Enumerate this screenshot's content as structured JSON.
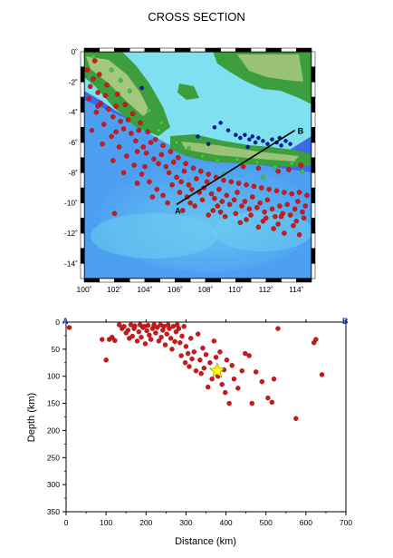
{
  "title": "CROSS SECTION",
  "colors": {
    "event": "#d01818",
    "event_edge": "#7a0000",
    "mainshock": "#ffff00",
    "deep_event": "#0a1aa8",
    "shallow_event": "#3cc83c",
    "profile_line": "#000000",
    "endpoint_label": "#1a2cc8",
    "ocean_deep": "#3d6be8",
    "ocean_mid": "#4fb2f2",
    "ocean_shelf": "#7fe0f0",
    "land_low": "#3d9e3d",
    "land_high": "#e8e2a8"
  },
  "chart_data": [
    {
      "type": "map",
      "name": "epicenter map",
      "xlim": [
        100,
        115
      ],
      "ylim": [
        -15,
        0
      ],
      "x_ticks": [
        100,
        102,
        104,
        106,
        108,
        110,
        112,
        114
      ],
      "x_tick_labels": [
        "100˚",
        "102˚",
        "104˚",
        "106˚",
        "108˚",
        "110˚",
        "112˚",
        "114˚"
      ],
      "y_ticks": [
        0,
        -2,
        -4,
        -6,
        -8,
        -10,
        -12,
        -14
      ],
      "y_tick_labels": [
        "0˚",
        "-2˚",
        "-4˚",
        "-6˚",
        "-8˚",
        "-10˚",
        "-12˚",
        "-14˚"
      ],
      "profile": {
        "start": {
          "label": "A",
          "lon": 106.1,
          "lat": -10.1
        },
        "end": {
          "label": "B",
          "lon": 113.9,
          "lat": -5.2
        }
      },
      "deep_events": [
        [
          103.8,
          -2.4
        ],
        [
          108.6,
          -5.0
        ],
        [
          109.0,
          -4.7
        ],
        [
          109.5,
          -5.2
        ],
        [
          110.0,
          -5.5
        ],
        [
          110.3,
          -5.7
        ],
        [
          110.6,
          -5.5
        ],
        [
          110.9,
          -5.8
        ],
        [
          111.1,
          -5.6
        ],
        [
          111.3,
          -6.0
        ],
        [
          111.5,
          -5.7
        ],
        [
          111.8,
          -5.9
        ],
        [
          112.1,
          -6.1
        ],
        [
          112.4,
          -5.8
        ],
        [
          112.7,
          -6.0
        ],
        [
          113.0,
          -6.2
        ],
        [
          113.3,
          -5.9
        ],
        [
          113.6,
          -6.1
        ],
        [
          107.5,
          -5.6
        ],
        [
          108.2,
          -6.1
        ],
        [
          110.8,
          -6.3
        ],
        [
          112.9,
          -5.7
        ]
      ],
      "shallow_events": [
        [
          100.6,
          -0.3
        ],
        [
          101.8,
          -1.2
        ],
        [
          103.0,
          -2.6
        ],
        [
          104.3,
          -3.9
        ],
        [
          105.1,
          -4.7
        ],
        [
          106.1,
          -6.0
        ],
        [
          106.9,
          -6.4
        ],
        [
          107.8,
          -6.9
        ],
        [
          108.8,
          -7.2
        ],
        [
          110.1,
          -7.1
        ],
        [
          111.4,
          -7.3
        ],
        [
          112.6,
          -7.6
        ],
        [
          113.7,
          -7.4
        ],
        [
          114.4,
          -7.9
        ],
        [
          109.2,
          -8.1
        ],
        [
          111.8,
          -8.3
        ],
        [
          104.9,
          -5.2
        ],
        [
          102.4,
          -1.9
        ]
      ],
      "events": [
        [
          100.2,
          -1.2
        ],
        [
          100.4,
          -2.3
        ],
        [
          100.6,
          -1.8
        ],
        [
          100.9,
          -2.7
        ],
        [
          101.1,
          -3.4
        ],
        [
          101.4,
          -2.9
        ],
        [
          101.6,
          -3.8
        ],
        [
          101.9,
          -4.3
        ],
        [
          102.1,
          -3.6
        ],
        [
          102.4,
          -4.6
        ],
        [
          102.6,
          -5.1
        ],
        [
          102.9,
          -4.5
        ],
        [
          103.1,
          -5.4
        ],
        [
          103.4,
          -5.9
        ],
        [
          103.6,
          -5.2
        ],
        [
          103.9,
          -6.3
        ],
        [
          104.1,
          -6.7
        ],
        [
          104.4,
          -6.0
        ],
        [
          104.6,
          -7.1
        ],
        [
          104.9,
          -7.4
        ],
        [
          105.1,
          -6.8
        ],
        [
          105.4,
          -7.6
        ],
        [
          105.6,
          -8.0
        ],
        [
          105.9,
          -7.3
        ],
        [
          106.1,
          -8.3
        ],
        [
          106.4,
          -8.6
        ],
        [
          106.6,
          -7.9
        ],
        [
          106.9,
          -8.8
        ],
        [
          107.1,
          -9.1
        ],
        [
          107.4,
          -8.4
        ],
        [
          107.6,
          -9.3
        ],
        [
          107.9,
          -9.0
        ],
        [
          108.1,
          -8.6
        ],
        [
          108.4,
          -9.4
        ],
        [
          108.6,
          -9.7
        ],
        [
          108.9,
          -9.1
        ],
        [
          109.1,
          -9.9
        ],
        [
          109.4,
          -9.5
        ],
        [
          109.6,
          -10.1
        ],
        [
          109.9,
          -9.8
        ],
        [
          110.1,
          -9.3
        ],
        [
          110.4,
          -10.2
        ],
        [
          110.6,
          -9.9
        ],
        [
          110.9,
          -10.4
        ],
        [
          111.1,
          -9.6
        ],
        [
          111.4,
          -10.3
        ],
        [
          111.6,
          -10.0
        ],
        [
          111.9,
          -10.6
        ],
        [
          112.1,
          -9.8
        ],
        [
          112.4,
          -10.4
        ],
        [
          112.6,
          -10.9
        ],
        [
          112.9,
          -10.2
        ],
        [
          113.1,
          -10.7
        ],
        [
          113.4,
          -10.1
        ],
        [
          113.6,
          -10.8
        ],
        [
          113.9,
          -10.4
        ],
        [
          114.1,
          -9.9
        ],
        [
          114.4,
          -10.6
        ],
        [
          114.6,
          -10.2
        ],
        [
          100.3,
          -3.1
        ],
        [
          100.8,
          -4.0
        ],
        [
          101.3,
          -4.8
        ],
        [
          101.8,
          -5.6
        ],
        [
          102.3,
          -6.3
        ],
        [
          102.8,
          -6.9
        ],
        [
          103.3,
          -7.5
        ],
        [
          103.8,
          -8.1
        ],
        [
          104.3,
          -8.6
        ],
        [
          104.8,
          -9.1
        ],
        [
          100.5,
          -5.2
        ],
        [
          101.2,
          -6.1
        ],
        [
          101.9,
          -7.2
        ],
        [
          102.6,
          -8.0
        ],
        [
          103.5,
          -8.7
        ],
        [
          105.2,
          -9.5
        ],
        [
          106.5,
          -10.5
        ],
        [
          107.3,
          -10.2
        ],
        [
          108.2,
          -10.8
        ],
        [
          109.3,
          -10.9
        ],
        [
          110.7,
          -11.1
        ],
        [
          111.8,
          -11.2
        ],
        [
          112.8,
          -11.4
        ],
        [
          113.8,
          -11.5
        ],
        [
          114.5,
          -11.0
        ],
        [
          102.0,
          -10.7
        ],
        [
          100.7,
          -0.6
        ],
        [
          101.0,
          -1.5
        ],
        [
          101.5,
          -2.2
        ],
        [
          102.2,
          -2.8
        ],
        [
          102.7,
          -3.5
        ],
        [
          103.2,
          -4.1
        ],
        [
          103.7,
          -4.7
        ],
        [
          104.2,
          -5.3
        ],
        [
          104.7,
          -5.8
        ],
        [
          105.2,
          -6.2
        ],
        [
          105.7,
          -6.6
        ],
        [
          106.2,
          -7.0
        ],
        [
          106.7,
          -7.4
        ],
        [
          107.2,
          -7.7
        ],
        [
          107.7,
          -7.9
        ],
        [
          108.2,
          -8.1
        ],
        [
          108.7,
          -8.3
        ],
        [
          109.2,
          -8.5
        ],
        [
          109.7,
          -8.6
        ],
        [
          110.2,
          -8.7
        ],
        [
          110.7,
          -8.8
        ],
        [
          111.2,
          -8.9
        ],
        [
          111.7,
          -9.0
        ],
        [
          112.2,
          -9.1
        ],
        [
          112.7,
          -9.2
        ],
        [
          113.2,
          -9.3
        ],
        [
          113.7,
          -9.4
        ],
        [
          114.2,
          -9.3
        ],
        [
          114.7,
          -9.5
        ],
        [
          109.0,
          -10.6
        ],
        [
          110.0,
          -10.7
        ],
        [
          111.0,
          -10.8
        ],
        [
          112.0,
          -11.0
        ],
        [
          113.0,
          -10.9
        ],
        [
          114.0,
          -11.2
        ],
        [
          104.5,
          -9.6
        ],
        [
          105.5,
          -10.0
        ],
        [
          106.8,
          -9.6
        ],
        [
          107.8,
          -9.8
        ],
        [
          108.8,
          -10.2
        ],
        [
          113.5,
          -7.8
        ],
        [
          114.3,
          -7.5
        ],
        [
          112.8,
          -7.9
        ],
        [
          111.5,
          -7.7
        ],
        [
          110.5,
          -7.6
        ],
        [
          103.5,
          -6.6
        ],
        [
          102.1,
          -5.3
        ],
        [
          100.9,
          -3.6
        ],
        [
          105.8,
          -8.8
        ],
        [
          104.0,
          -7.6
        ],
        [
          106.3,
          -9.3
        ],
        [
          107.0,
          -10.0
        ],
        [
          108.5,
          -10.5
        ],
        [
          110.3,
          -11.3
        ],
        [
          111.5,
          -11.6
        ],
        [
          112.5,
          -11.7
        ],
        [
          113.2,
          -12.0
        ],
        [
          114.2,
          -12.1
        ]
      ]
    },
    {
      "type": "scatter",
      "name": "depth cross section",
      "xlabel": "Distance (km)",
      "ylabel": "Depth (km)",
      "xlim": [
        0,
        700
      ],
      "ylim": [
        0,
        350
      ],
      "y_inverted": true,
      "x_ticks": [
        0,
        100,
        200,
        300,
        400,
        500,
        600,
        700
      ],
      "y_ticks": [
        0,
        50,
        100,
        150,
        200,
        250,
        300,
        350
      ],
      "endpoint_left": "A",
      "endpoint_right": "B",
      "mainshock": {
        "x": 378,
        "y": 90
      },
      "points": [
        [
          8,
          10
        ],
        [
          90,
          32
        ],
        [
          100,
          70
        ],
        [
          108,
          32
        ],
        [
          115,
          28
        ],
        [
          122,
          34
        ],
        [
          133,
          5
        ],
        [
          140,
          12
        ],
        [
          145,
          8
        ],
        [
          150,
          20
        ],
        [
          155,
          15
        ],
        [
          158,
          30
        ],
        [
          162,
          5
        ],
        [
          166,
          26
        ],
        [
          170,
          12
        ],
        [
          172,
          7
        ],
        [
          178,
          35
        ],
        [
          182,
          18
        ],
        [
          185,
          5
        ],
        [
          188,
          28
        ],
        [
          192,
          10
        ],
        [
          196,
          8
        ],
        [
          198,
          40
        ],
        [
          202,
          16
        ],
        [
          205,
          6
        ],
        [
          208,
          24
        ],
        [
          212,
          32
        ],
        [
          216,
          12
        ],
        [
          220,
          5
        ],
        [
          224,
          20
        ],
        [
          228,
          10
        ],
        [
          232,
          35
        ],
        [
          236,
          5
        ],
        [
          238,
          28
        ],
        [
          242,
          15
        ],
        [
          245,
          8
        ],
        [
          248,
          42
        ],
        [
          252,
          22
        ],
        [
          255,
          5
        ],
        [
          258,
          12
        ],
        [
          262,
          30
        ],
        [
          265,
          50
        ],
        [
          268,
          8
        ],
        [
          272,
          36
        ],
        [
          275,
          18
        ],
        [
          278,
          5
        ],
        [
          282,
          12
        ],
        [
          285,
          38
        ],
        [
          288,
          62
        ],
        [
          290,
          26
        ],
        [
          295,
          8
        ],
        [
          298,
          75
        ],
        [
          300,
          45
        ],
        [
          305,
          58
        ],
        [
          308,
          82
        ],
        [
          312,
          30
        ],
        [
          315,
          68
        ],
        [
          320,
          55
        ],
        [
          325,
          90
        ],
        [
          330,
          22
        ],
        [
          335,
          70
        ],
        [
          338,
          95
        ],
        [
          342,
          48
        ],
        [
          345,
          85
        ],
        [
          350,
          60
        ],
        [
          355,
          120
        ],
        [
          360,
          75
        ],
        [
          365,
          105
        ],
        [
          370,
          35
        ],
        [
          375,
          65
        ],
        [
          380,
          100
        ],
        [
          385,
          55
        ],
        [
          390,
          115
        ],
        [
          395,
          88
        ],
        [
          398,
          130
        ],
        [
          402,
          70
        ],
        [
          408,
          150
        ],
        [
          415,
          80
        ],
        [
          420,
          105
        ],
        [
          430,
          122
        ],
        [
          440,
          90
        ],
        [
          448,
          58
        ],
        [
          458,
          62
        ],
        [
          465,
          150
        ],
        [
          475,
          92
        ],
        [
          490,
          110
        ],
        [
          505,
          140
        ],
        [
          515,
          148
        ],
        [
          520,
          105
        ],
        [
          530,
          12
        ],
        [
          575,
          178
        ],
        [
          620,
          38
        ],
        [
          625,
          32
        ],
        [
          640,
          97
        ]
      ]
    }
  ]
}
